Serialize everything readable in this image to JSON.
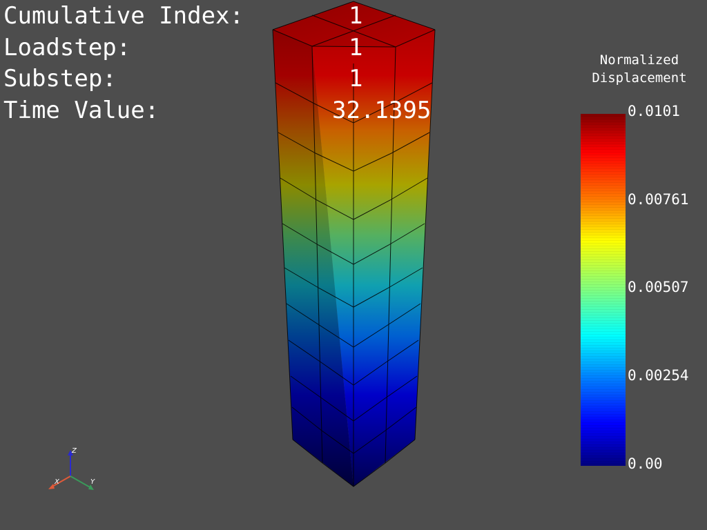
{
  "info": {
    "cumulative_index": {
      "label": "Cumulative Index:",
      "value": "1"
    },
    "loadstep": {
      "label": "Loadstep:",
      "value": "1"
    },
    "substep": {
      "label": "Substep:",
      "value": "1"
    },
    "time_value": {
      "label": "Time Value:",
      "value": "32.1395"
    }
  },
  "scalar_bar": {
    "title_line1": "Normalized",
    "title_line2": "Displacement",
    "ticks": [
      "0.0101",
      "0.00761",
      "0.00507",
      "0.00254",
      "0.00"
    ],
    "colormap": "jet"
  },
  "axes_widget": {
    "x_label": "X",
    "y_label": "Y",
    "z_label": "Z",
    "x_color": "#e05a3a",
    "y_color": "#3a9a5a",
    "z_color": "#2a2ad0"
  },
  "colors": {
    "background": "#4d4d4d"
  }
}
